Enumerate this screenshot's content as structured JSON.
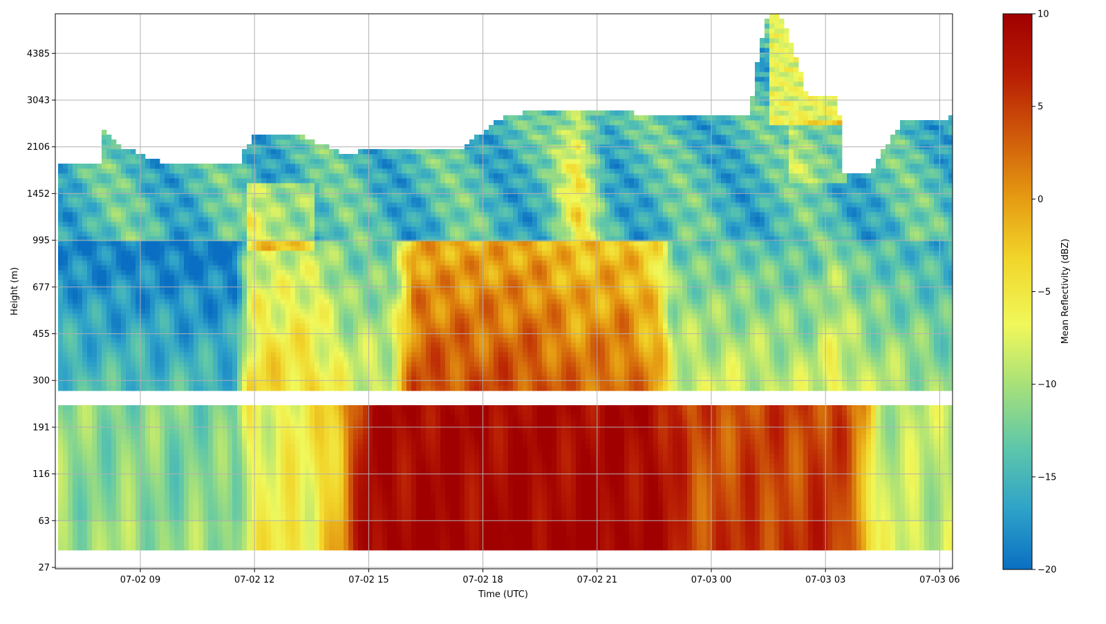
{
  "chart_data": {
    "type": "heatmap",
    "title": "",
    "xlabel": "Time (UTC)",
    "ylabel": "Height (m)",
    "x_ticks": [
      "07-02 09",
      "07-02 12",
      "07-02 15",
      "07-02 18",
      "07-02 21",
      "07-03 00",
      "07-03 03",
      "07-03 06"
    ],
    "y_ticks": [
      "27",
      "63",
      "116",
      "191",
      "300",
      "455",
      "677",
      "995",
      "1452",
      "2106",
      "3043",
      "4385"
    ],
    "colorbar": {
      "label": "Mean Reflectivity (dBZ)",
      "ticks": [
        "10",
        "5",
        "0",
        "−5",
        "−10",
        "−15",
        "−20"
      ],
      "range": [
        -20,
        10
      ],
      "colormap": [
        "#0a6fc2",
        "#2fa3c9",
        "#5ec7a9",
        "#a6e07a",
        "#f0f85a",
        "#f1d52a",
        "#e59a12",
        "#cf5a0a",
        "#b81d04",
        "#a10000"
      ]
    },
    "grid": true,
    "x_range_hours": [
      6.75,
      30.33
    ],
    "y_range_m": [
      27,
      6700
    ],
    "bottom_row_levels_m": [
      [
        40,
        63
      ],
      [
        63,
        116
      ],
      [
        116,
        191
      ],
      [
        191,
        240
      ]
    ],
    "cloud_top_m": [
      [
        7.0,
        1870
      ],
      [
        8.0,
        1870
      ],
      [
        8.0,
        2450
      ],
      [
        8.5,
        2100
      ],
      [
        9.5,
        1870
      ],
      [
        11.6,
        1870
      ],
      [
        12.0,
        2350
      ],
      [
        13.0,
        2350
      ],
      [
        14.5,
        1950
      ],
      [
        15.0,
        2100
      ],
      [
        16.0,
        2050
      ],
      [
        17.5,
        2100
      ],
      [
        18.5,
        2650
      ],
      [
        19.5,
        2850
      ],
      [
        21.0,
        2850
      ],
      [
        22.0,
        2750
      ],
      [
        24.0,
        2750
      ],
      [
        25.0,
        2650
      ],
      [
        25.6,
        6700
      ],
      [
        26.5,
        3200
      ],
      [
        27.3,
        3200
      ],
      [
        27.5,
        1700
      ],
      [
        28.2,
        1700
      ],
      [
        29.0,
        2550
      ],
      [
        30.2,
        2650
      ]
    ],
    "reflectivity_summary_dBZ": [
      {
        "period": "07-02 07–11",
        "below_240m": -12,
        "300-1000m": -14,
        "above_1000m": -15
      },
      {
        "period": "07-02 12–15",
        "below_240m": -6,
        "300-1000m": -5,
        "above_1000m": -12
      },
      {
        "period": "07-02 15–23",
        "below_240m": 9,
        "300-1000m": 4,
        "above_1000m": -13
      },
      {
        "period": "07-03 00–03",
        "below_240m": 5,
        "300-1000m": -8,
        "above_1000m": -14
      },
      {
        "period": "07-03 04–06",
        "below_240m": -9,
        "300-1000m": -10,
        "above_1000m": -15
      }
    ]
  }
}
